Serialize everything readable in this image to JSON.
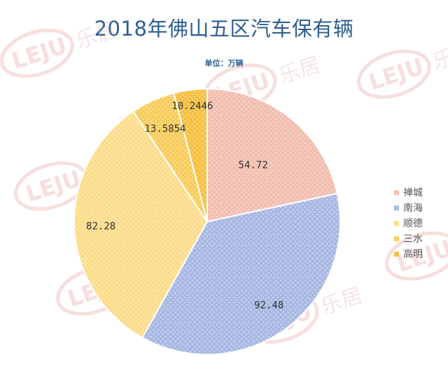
{
  "chart_data": {
    "type": "pie",
    "title": "2018年佛山五区汽车保有辆",
    "subtitle": "单位：万辆",
    "categories": [
      "禅城",
      "南海",
      "顺德",
      "三水",
      "高明"
    ],
    "values": [
      54.72,
      92.48,
      82.28,
      13.5854,
      10.2446
    ],
    "value_labels": [
      "54.72",
      "92.48",
      "82.28",
      "13.5854",
      "10.2446"
    ],
    "colors": [
      "#f2bfb1",
      "#a9b9e3",
      "#fbdd8c",
      "#f8cd5c",
      "#f6c042"
    ],
    "legend_position": "right"
  },
  "watermark": {
    "brand": "LEJU",
    "text": "乐居"
  }
}
